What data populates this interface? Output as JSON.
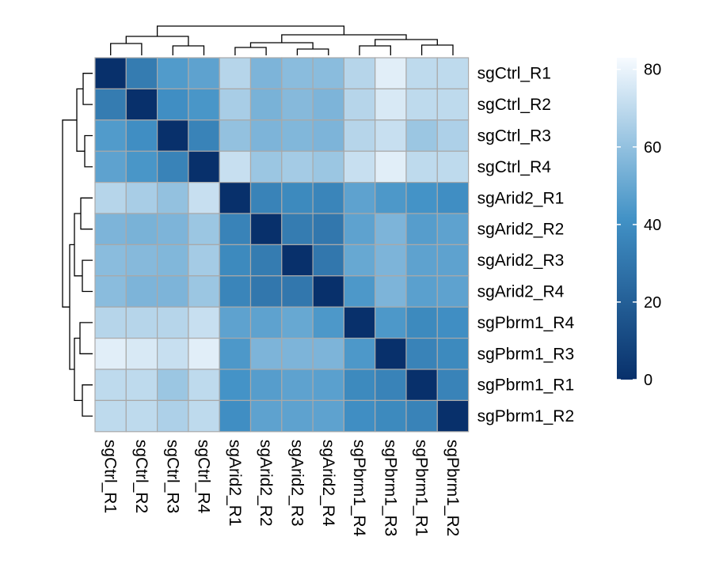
{
  "chart_data": {
    "type": "heatmap",
    "rows": [
      "sgCtrl_R1",
      "sgCtrl_R2",
      "sgCtrl_R3",
      "sgCtrl_R4",
      "sgArid2_R1",
      "sgArid2_R2",
      "sgArid2_R3",
      "sgArid2_R4",
      "sgPbrm1_R4",
      "sgPbrm1_R3",
      "sgPbrm1_R1",
      "sgPbrm1_R2"
    ],
    "columns": [
      "sgCtrl_R1",
      "sgCtrl_R2",
      "sgCtrl_R3",
      "sgCtrl_R4",
      "sgArid2_R1",
      "sgArid2_R2",
      "sgArid2_R3",
      "sgArid2_R4",
      "sgPbrm1_R4",
      "sgPbrm1_R3",
      "sgPbrm1_R1",
      "sgPbrm1_R2"
    ],
    "values": [
      [
        0,
        32,
        45,
        48,
        68,
        55,
        58,
        58,
        68,
        78,
        70,
        70
      ],
      [
        32,
        0,
        40,
        43,
        65,
        54,
        57,
        55,
        68,
        76,
        70,
        70
      ],
      [
        45,
        40,
        0,
        35,
        60,
        55,
        56,
        55,
        68,
        72,
        62,
        66
      ],
      [
        48,
        43,
        35,
        0,
        72,
        62,
        64,
        62,
        72,
        78,
        70,
        70
      ],
      [
        68,
        65,
        60,
        72,
        0,
        35,
        38,
        36,
        48,
        44,
        42,
        40
      ],
      [
        55,
        54,
        55,
        62,
        35,
        0,
        32,
        30,
        48,
        55,
        46,
        48
      ],
      [
        58,
        57,
        56,
        64,
        38,
        32,
        0,
        30,
        50,
        55,
        48,
        48
      ],
      [
        58,
        55,
        55,
        62,
        36,
        30,
        30,
        0,
        44,
        55,
        47,
        48
      ],
      [
        68,
        68,
        68,
        72,
        48,
        48,
        50,
        44,
        0,
        44,
        38,
        40
      ],
      [
        78,
        76,
        72,
        78,
        44,
        55,
        55,
        55,
        44,
        0,
        35,
        38
      ],
      [
        70,
        70,
        62,
        70,
        42,
        46,
        48,
        47,
        38,
        35,
        0,
        35
      ],
      [
        70,
        70,
        66,
        70,
        40,
        48,
        48,
        48,
        40,
        38,
        35,
        0
      ]
    ],
    "colorbar": {
      "min": 0,
      "max": 83,
      "ticks": [
        0,
        20,
        40,
        60,
        80
      ]
    },
    "colors": {
      "low": "#08306b",
      "mid": "#4292c6",
      "high": "#f7fbff"
    },
    "title": "",
    "xlabel": "",
    "ylabel": ""
  }
}
